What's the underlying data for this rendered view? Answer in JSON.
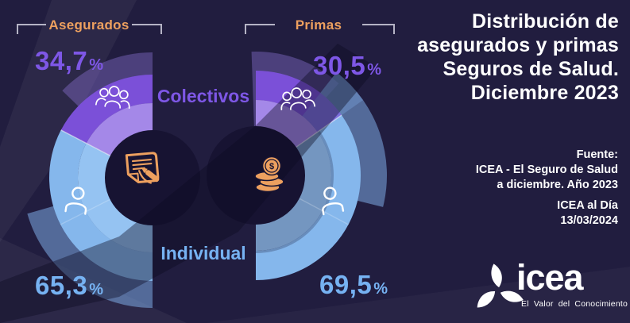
{
  "header": {
    "title_lines": [
      "Distribución de",
      "asegurados y primas",
      "Seguros de Salud.",
      "Diciembre 2023"
    ]
  },
  "charts": {
    "percent_sign": "%",
    "segment_labels": {
      "colectivos": "Colectivos",
      "individual": "Individual"
    },
    "left": {
      "label": "Asegurados",
      "segments": {
        "colectivos": {
          "value_display": "34,7",
          "value": 34.7
        },
        "individual": {
          "value_display": "65,3",
          "value": 65.3
        }
      }
    },
    "right": {
      "label": "Primas",
      "segments": {
        "colectivos": {
          "value_display": "30,5",
          "value": 30.5
        },
        "individual": {
          "value_display": "69,5",
          "value": 69.5
        }
      }
    }
  },
  "source": {
    "fuente_label": "Fuente:",
    "line1": "ICEA - El Seguro de Salud",
    "line2": "a diciembre. Año 2023",
    "bulletin": "ICEA al Día",
    "date": "13/03/2024"
  },
  "logo": {
    "name": "icea",
    "tagline": "El Valor del Conocimiento"
  },
  "colors": {
    "background": "#211d3f",
    "orange": "#eda05f",
    "purple_text": "#7e57e6",
    "blue_text": "#76b2f2",
    "white": "#ffffff",
    "bracket": "#b5b3c5",
    "purple_outer": "#7b50d8",
    "purple_inner": "#a488e8",
    "blue_outer": "#85b7ec",
    "blue_inner": "#95c3f2",
    "flare_blue": "rgba(125,170,228,0.55)",
    "flare_lavender": "rgba(148,120,224,0.38)",
    "violet_overlap": "rgba(125,170,228,0.35)",
    "inner_shade": "rgba(18,14,42,0.25)",
    "separator": "rgba(255,255,255,0.55)",
    "separator_faint": "rgba(255,255,255,0.22)",
    "center_circle": "#171332",
    "icon_orange": "#eda05f"
  },
  "chart_data": [
    {
      "type": "pie",
      "shape": "half-donut",
      "opening": "left",
      "title": "Asegurados",
      "categories": [
        "Colectivos",
        "Individual"
      ],
      "values": [
        34.7,
        65.3
      ],
      "unit": "%"
    },
    {
      "type": "pie",
      "shape": "half-donut",
      "opening": "right",
      "title": "Primas",
      "categories": [
        "Colectivos",
        "Individual"
      ],
      "values": [
        30.5,
        69.5
      ],
      "unit": "%"
    }
  ]
}
